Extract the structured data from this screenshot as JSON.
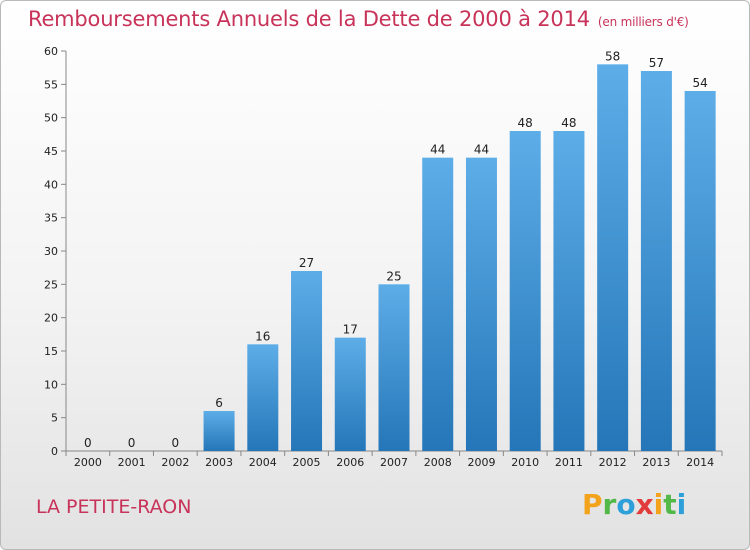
{
  "chart_data": {
    "type": "bar",
    "title": "Remboursements Annuels de la Dette de 2000 à 2014",
    "subtitle": "(en milliers d'€)",
    "categories": [
      "2000",
      "2001",
      "2002",
      "2003",
      "2004",
      "2005",
      "2006",
      "2007",
      "2008",
      "2009",
      "2010",
      "2011",
      "2012",
      "2013",
      "2014"
    ],
    "values": [
      0,
      0,
      0,
      6,
      16,
      27,
      17,
      25,
      44,
      44,
      48,
      48,
      58,
      57,
      54
    ],
    "ylim": [
      0,
      60
    ],
    "yticks": [
      0,
      5,
      10,
      15,
      20,
      25,
      30,
      35,
      40,
      45,
      50,
      55,
      60
    ],
    "grid": false,
    "colors": {
      "bar_light": "#5dade8",
      "bar_dark": "#2576b8",
      "text_accent": "#c8335a"
    }
  },
  "footer": {
    "location": "LA PETITE-RAON",
    "brand_logo": "Proxiti"
  }
}
